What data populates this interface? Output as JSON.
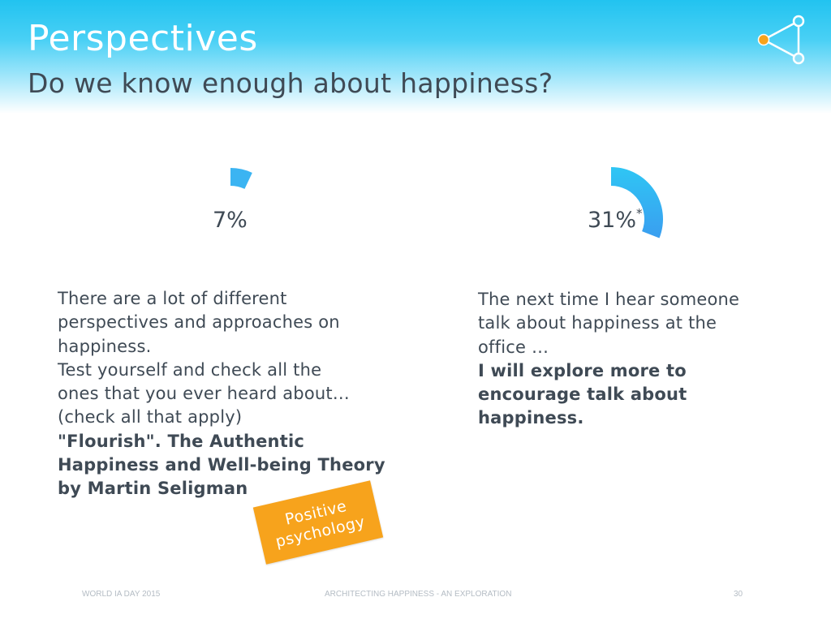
{
  "header": {
    "title": "Perspectives",
    "subtitle": "Do we know enough about happiness?"
  },
  "colors": {
    "accent": "#22c3f0",
    "gauge": "#3bb4f2",
    "sticker": "#f7a31c",
    "logo_dot": "#f7a31c",
    "text": "#3f4a55"
  },
  "stats": {
    "left": {
      "value": "7%",
      "fraction": 0.07
    },
    "right": {
      "value": "31%",
      "mark": "*",
      "fraction": 0.31
    }
  },
  "left_text": {
    "lines": [
      "There are a lot of different",
      "perspectives and approaches on",
      "happiness.",
      "Test yourself and check all the",
      "ones that you ever heard about…",
      "(check all that apply)"
    ],
    "bold_lines": [
      "\"Flourish\". The Authentic",
      "Happiness and Well-being Theory",
      "by Martin Seligman"
    ]
  },
  "right_text": {
    "lines": [
      "The next time I hear someone",
      "talk about happiness at the",
      "office …"
    ],
    "bold_lines": [
      "I will explore more to",
      "encourage talk about",
      "happiness."
    ]
  },
  "sticker": {
    "line1": "Positive",
    "line2": "psychology"
  },
  "footer": {
    "left": "WORLD IA DAY 2015",
    "center": "ARCHITECTING HAPPINESS - AN EXPLORATION",
    "page": "30"
  },
  "logo_icon": "share-network-icon"
}
